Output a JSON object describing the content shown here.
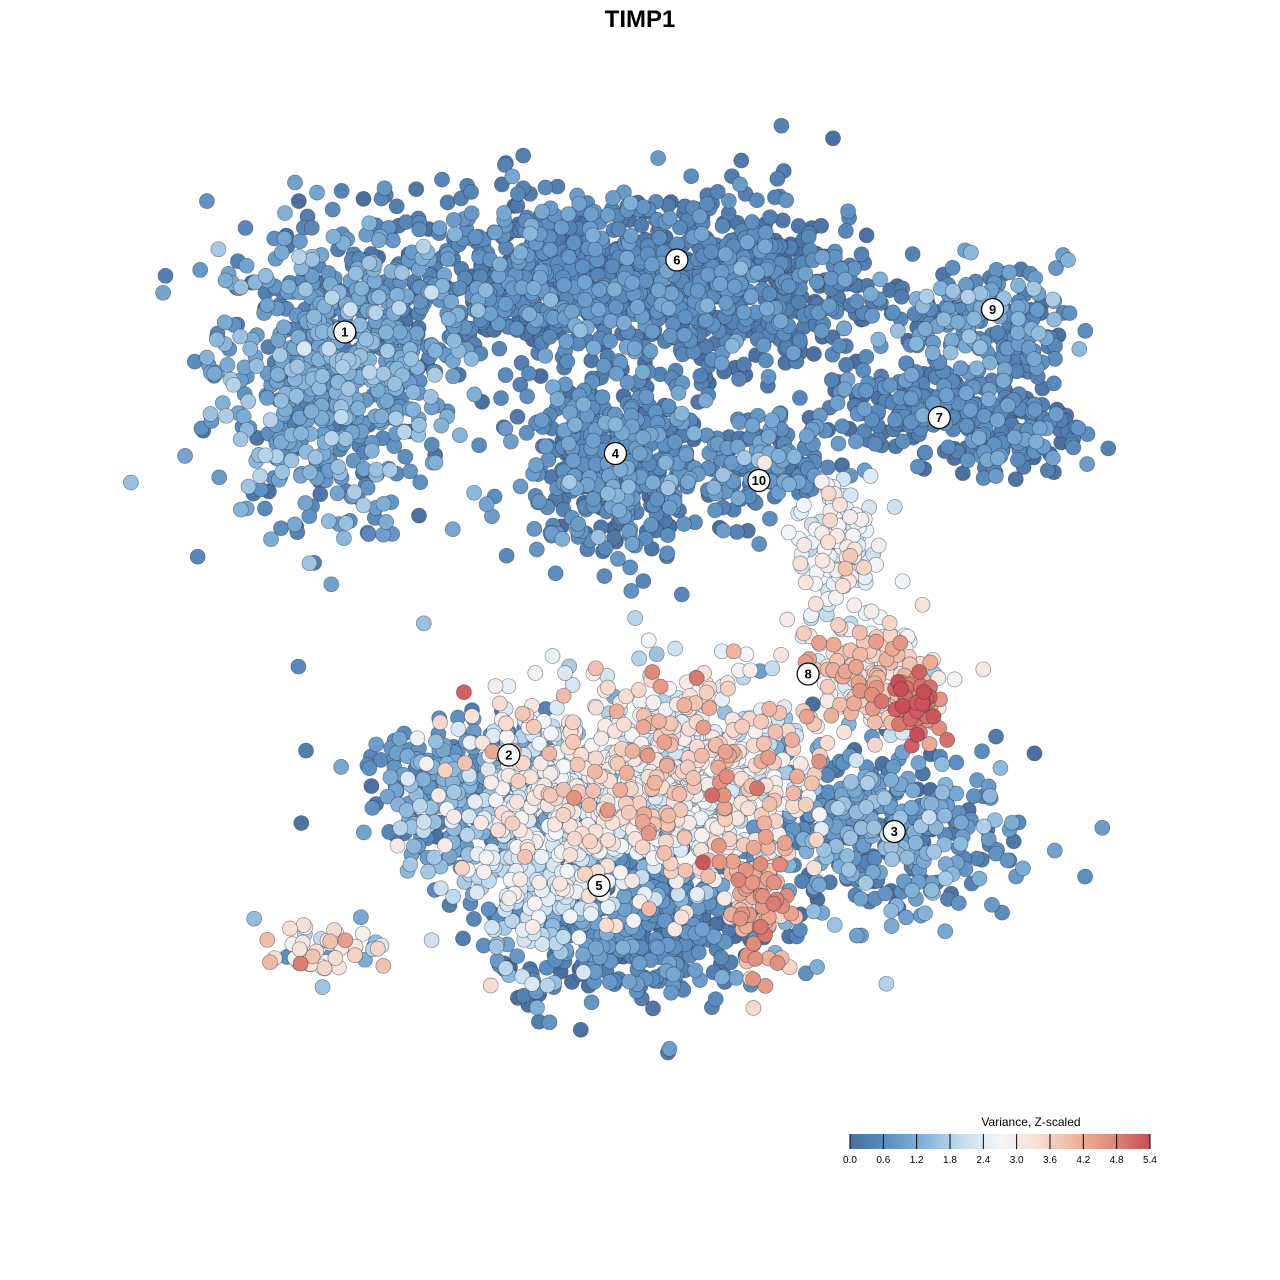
{
  "chart_data": {
    "type": "scatter",
    "title": "TIMP1",
    "xlabel": "",
    "ylabel": "",
    "grid": false,
    "legend": {
      "title": "Variance, Z-scaled",
      "placement": "bottom-right",
      "min": 0.0,
      "max": 5.4,
      "ticks": [
        "0.0",
        "0.6",
        "1.2",
        "1.8",
        "2.4",
        "3.0",
        "3.6",
        "4.2",
        "4.8",
        "5.4"
      ],
      "palette": [
        "#4a6fa0",
        "#5d8fc1",
        "#86b4d9",
        "#c5dcee",
        "#f3f6f9",
        "#f8ddd2",
        "#efb49f",
        "#e08a78",
        "#c94c56"
      ]
    },
    "clusters": [
      {
        "label": "1",
        "x": -7.2,
        "y": 6.4
      },
      {
        "label": "2",
        "x": -3.2,
        "y": -3.0
      },
      {
        "label": "3",
        "x": 6.2,
        "y": -4.7
      },
      {
        "label": "4",
        "x": -0.6,
        "y": 3.7
      },
      {
        "label": "5",
        "x": -1.0,
        "y": -5.9
      },
      {
        "label": "6",
        "x": 0.9,
        "y": 8.0
      },
      {
        "label": "7",
        "x": 7.3,
        "y": 4.5
      },
      {
        "label": "8",
        "x": 4.1,
        "y": -1.2
      },
      {
        "label": "9",
        "x": 8.6,
        "y": 6.9
      },
      {
        "label": "10",
        "x": 2.9,
        "y": 3.1
      }
    ],
    "point_groups": [
      {
        "cluster": "1",
        "cx": -7.5,
        "cy": 5.6,
        "sx": 1.45,
        "sy": 1.65,
        "n": 650,
        "v": 0.9,
        "vsd": 0.45
      },
      {
        "cluster": "6",
        "cx": -1.8,
        "cy": 7.5,
        "sx": 2.6,
        "sy": 0.95,
        "n": 780,
        "v": 0.5,
        "vsd": 0.35
      },
      {
        "cluster": "6",
        "cx": 2.9,
        "cy": 7.4,
        "sx": 1.5,
        "sy": 1.0,
        "n": 360,
        "v": 0.35,
        "vsd": 0.3
      },
      {
        "cluster": "4",
        "cx": -0.6,
        "cy": 3.5,
        "sx": 1.1,
        "sy": 1.05,
        "n": 430,
        "v": 0.55,
        "vsd": 0.35
      },
      {
        "cluster": "10",
        "cx": 2.8,
        "cy": 3.5,
        "sx": 1.05,
        "sy": 0.55,
        "n": 150,
        "v": 0.6,
        "vsd": 0.4
      },
      {
        "cluster": "9",
        "cx": 8.2,
        "cy": 6.8,
        "sx": 1.1,
        "sy": 0.55,
        "n": 150,
        "v": 0.8,
        "vsd": 0.45
      },
      {
        "cluster": "9",
        "cx": 9.3,
        "cy": 6.0,
        "sx": 0.45,
        "sy": 0.9,
        "n": 70,
        "v": 0.5,
        "vsd": 0.3
      },
      {
        "cluster": "7",
        "cx": 6.8,
        "cy": 4.8,
        "sx": 1.2,
        "sy": 0.45,
        "n": 170,
        "v": 0.4,
        "vsd": 0.3
      },
      {
        "cluster": "7",
        "cx": 8.8,
        "cy": 4.0,
        "sx": 1.0,
        "sy": 0.45,
        "n": 110,
        "v": 0.45,
        "vsd": 0.35
      },
      {
        "cluster": "8",
        "cx": 4.9,
        "cy": 1.6,
        "sx": 0.55,
        "sy": 0.9,
        "n": 130,
        "v": 2.7,
        "vsd": 0.45
      },
      {
        "cluster": "8",
        "cx": 5.7,
        "cy": -1.3,
        "sx": 0.75,
        "sy": 0.6,
        "n": 180,
        "v": 3.3,
        "vsd": 0.6
      },
      {
        "cluster": "8",
        "cx": 6.7,
        "cy": -1.9,
        "sx": 0.35,
        "sy": 0.3,
        "n": 60,
        "v": 4.8,
        "vsd": 0.5
      },
      {
        "cluster": "2",
        "cx": -4.2,
        "cy": -3.8,
        "sx": 1.3,
        "sy": 0.75,
        "n": 300,
        "v": 0.9,
        "vsd": 0.4
      },
      {
        "cluster": "2",
        "cx": -7.8,
        "cy": -7.3,
        "sx": 0.8,
        "sy": 0.3,
        "n": 50,
        "v": 2.5,
        "vsd": 1.0
      },
      {
        "cluster": "2",
        "cx": -1.5,
        "cy": -3.9,
        "sx": 1.6,
        "sy": 1.2,
        "n": 520,
        "v": 2.6,
        "vsd": 0.6
      },
      {
        "cluster": "2",
        "cx": 1.5,
        "cy": -3.6,
        "sx": 1.3,
        "sy": 1.2,
        "n": 460,
        "v": 3.0,
        "vsd": 0.8
      },
      {
        "cluster": "2",
        "cx": 2.9,
        "cy": -6.3,
        "sx": 0.4,
        "sy": 0.7,
        "n": 80,
        "v": 4.2,
        "vsd": 0.5
      },
      {
        "cluster": "3",
        "cx": 5.9,
        "cy": -4.7,
        "sx": 1.5,
        "sy": 1.0,
        "n": 380,
        "v": 0.8,
        "vsd": 0.5
      },
      {
        "cluster": "5",
        "cx": -0.3,
        "cy": -6.8,
        "sx": 1.6,
        "sy": 0.9,
        "n": 460,
        "v": 0.5,
        "vsd": 0.35
      },
      {
        "cluster": "5",
        "cx": -2.6,
        "cy": -6.0,
        "sx": 0.7,
        "sy": 0.9,
        "n": 140,
        "v": 2.1,
        "vsd": 0.4
      }
    ]
  }
}
